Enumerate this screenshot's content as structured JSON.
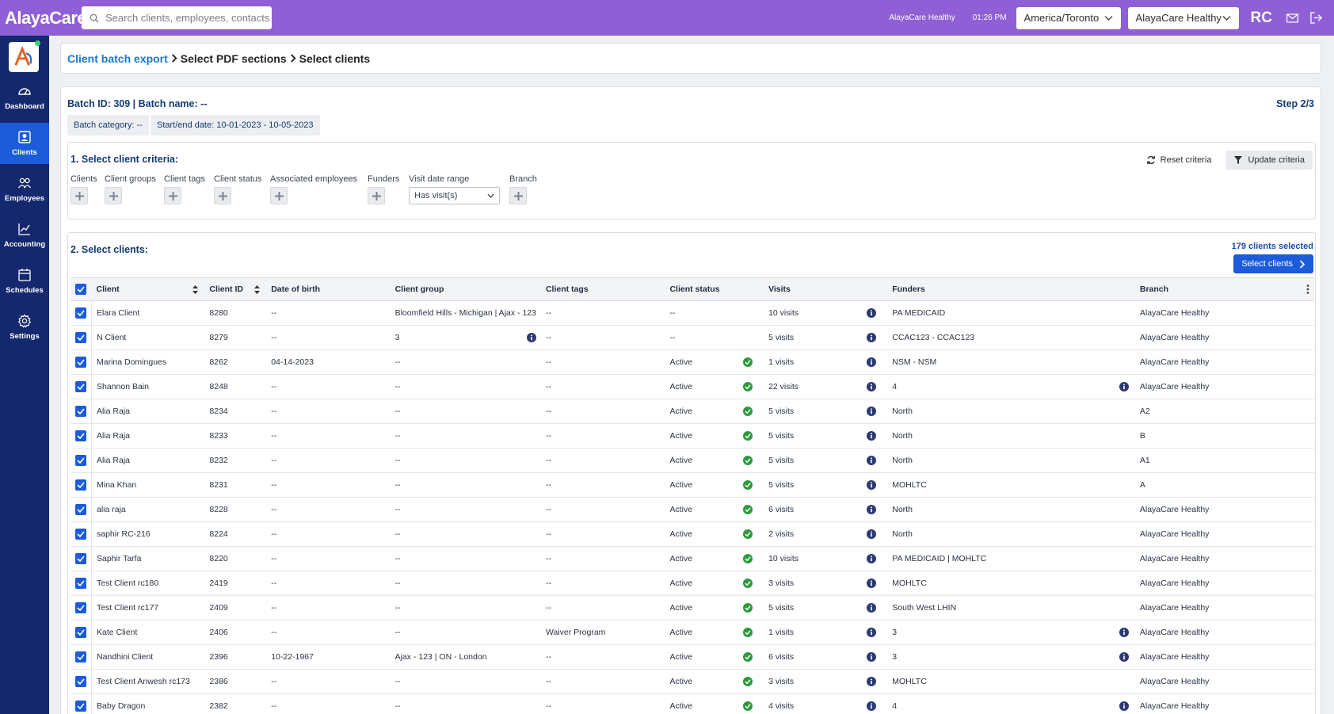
{
  "app": {
    "logo_text": "AlayaCare"
  },
  "topbar": {
    "search_placeholder": "Search clients, employees, contacts",
    "org_label": "AlayaCare Healthy",
    "time": "01:26 PM",
    "timezone": "America/Toronto",
    "org_select": "AlayaCare Healthy",
    "user_initials": "RC"
  },
  "sidebar": {
    "items": [
      {
        "label": "Dashboard",
        "icon": "dashboard-icon"
      },
      {
        "label": "Clients",
        "icon": "client-icon",
        "active": true
      },
      {
        "label": "Employees",
        "icon": "employees-icon"
      },
      {
        "label": "Accounting",
        "icon": "accounting-icon"
      },
      {
        "label": "Schedules",
        "icon": "calendar-icon"
      },
      {
        "label": "Settings",
        "icon": "gear-icon"
      }
    ]
  },
  "breadcrumb": {
    "link": "Client batch export",
    "item2": "Select PDF sections",
    "item3": "Select clients"
  },
  "batch": {
    "line": "Batch ID: 309 | Batch name: --",
    "step": "Step 2/3",
    "category": "Batch category: --",
    "dates": "Start/end date: 10-01-2023 - 10-05-2023"
  },
  "criteria": {
    "title": "1. Select client criteria:",
    "reset_label": "Reset criteria",
    "update_label": "Update criteria",
    "filters": {
      "clients": "Clients",
      "groups": "Client groups",
      "tags": "Client tags",
      "status": "Client status",
      "employees": "Associated employees",
      "funders": "Funders",
      "visit_range": "Visit date range",
      "visit_range_value": "Has visit(s)",
      "branch": "Branch"
    }
  },
  "clients": {
    "title": "2. Select clients:",
    "selected_count": "179 clients selected",
    "select_button": "Select clients",
    "columns": {
      "client": "Client",
      "client_id": "Client ID",
      "dob": "Date of birth",
      "group": "Client group",
      "tags": "Client tags",
      "status": "Client status",
      "visits": "Visits",
      "funders": "Funders",
      "branch": "Branch"
    },
    "rows": [
      {
        "name": "Elara Client",
        "id": "8280",
        "dob": "--",
        "group": "Bloomfield Hills - Michigan | Ajax - 123",
        "group_info": false,
        "tags": "--",
        "status": "--",
        "status_ok": false,
        "visits": "10 visits",
        "funders": "PA MEDICAID",
        "funders_info": false,
        "branch": "AlayaCare Healthy"
      },
      {
        "name": "N Client",
        "id": "8279",
        "dob": "--",
        "group": "3",
        "group_info": true,
        "tags": "--",
        "status": "--",
        "status_ok": false,
        "visits": "5 visits",
        "funders": "CCAC123 - CCAC123",
        "funders_info": false,
        "branch": "AlayaCare Healthy"
      },
      {
        "name": "Marina Domingues",
        "id": "8262",
        "dob": "04-14-2023",
        "group": "--",
        "group_info": false,
        "tags": "--",
        "status": "Active",
        "status_ok": true,
        "visits": "1 visits",
        "funders": "NSM - NSM",
        "funders_info": false,
        "branch": "AlayaCare Healthy"
      },
      {
        "name": "Shannon Bain",
        "id": "8248",
        "dob": "--",
        "group": "--",
        "group_info": false,
        "tags": "--",
        "status": "Active",
        "status_ok": true,
        "visits": "22 visits",
        "funders": "4",
        "funders_info": true,
        "branch": "AlayaCare Healthy"
      },
      {
        "name": "Alia Raja",
        "id": "8234",
        "dob": "--",
        "group": "--",
        "group_info": false,
        "tags": "--",
        "status": "Active",
        "status_ok": true,
        "visits": "5 visits",
        "funders": "North",
        "funders_info": false,
        "branch": "A2"
      },
      {
        "name": "Alia Raja",
        "id": "8233",
        "dob": "--",
        "group": "--",
        "group_info": false,
        "tags": "--",
        "status": "Active",
        "status_ok": true,
        "visits": "5 visits",
        "funders": "North",
        "funders_info": false,
        "branch": "B"
      },
      {
        "name": "Alia Raja",
        "id": "8232",
        "dob": "--",
        "group": "--",
        "group_info": false,
        "tags": "--",
        "status": "Active",
        "status_ok": true,
        "visits": "5 visits",
        "funders": "North",
        "funders_info": false,
        "branch": "A1"
      },
      {
        "name": "Mina Khan",
        "id": "8231",
        "dob": "--",
        "group": "--",
        "group_info": false,
        "tags": "--",
        "status": "Active",
        "status_ok": true,
        "visits": "5 visits",
        "funders": "MOHLTC",
        "funders_info": false,
        "branch": "A"
      },
      {
        "name": "alia raja",
        "id": "8228",
        "dob": "--",
        "group": "--",
        "group_info": false,
        "tags": "--",
        "status": "Active",
        "status_ok": true,
        "visits": "6 visits",
        "funders": "North",
        "funders_info": false,
        "branch": "AlayaCare Healthy"
      },
      {
        "name": "saphir RC-216",
        "id": "8224",
        "dob": "--",
        "group": "--",
        "group_info": false,
        "tags": "--",
        "status": "Active",
        "status_ok": true,
        "visits": "2 visits",
        "funders": "North",
        "funders_info": false,
        "branch": "AlayaCare Healthy"
      },
      {
        "name": "Saphir Tarfa",
        "id": "8220",
        "dob": "--",
        "group": "--",
        "group_info": false,
        "tags": "--",
        "status": "Active",
        "status_ok": true,
        "visits": "10 visits",
        "funders": "PA MEDICAID | MOHLTC",
        "funders_info": false,
        "branch": "AlayaCare Healthy"
      },
      {
        "name": "Test Client rc180",
        "id": "2419",
        "dob": "--",
        "group": "--",
        "group_info": false,
        "tags": "--",
        "status": "Active",
        "status_ok": true,
        "visits": "3 visits",
        "funders": "MOHLTC",
        "funders_info": false,
        "branch": "AlayaCare Healthy"
      },
      {
        "name": "Test Client rc177",
        "id": "2409",
        "dob": "--",
        "group": "--",
        "group_info": false,
        "tags": "--",
        "status": "Active",
        "status_ok": true,
        "visits": "5 visits",
        "funders": "South West LHIN",
        "funders_info": false,
        "branch": "AlayaCare Healthy"
      },
      {
        "name": "Kate Client",
        "id": "2406",
        "dob": "--",
        "group": "--",
        "group_info": false,
        "tags": "Waiver Program",
        "status": "Active",
        "status_ok": true,
        "visits": "1 visits",
        "funders": "3",
        "funders_info": true,
        "branch": "AlayaCare Healthy"
      },
      {
        "name": "Nandhini Client",
        "id": "2396",
        "dob": "10-22-1967",
        "group": "Ajax - 123 | ON - London",
        "group_info": false,
        "tags": "--",
        "status": "Active",
        "status_ok": true,
        "visits": "6 visits",
        "funders": "3",
        "funders_info": true,
        "branch": "AlayaCare Healthy"
      },
      {
        "name": "Test Client Anwesh rc173",
        "id": "2386",
        "dob": "--",
        "group": "--",
        "group_info": false,
        "tags": "--",
        "status": "Active",
        "status_ok": true,
        "visits": "3 visits",
        "funders": "MOHLTC",
        "funders_info": false,
        "branch": "AlayaCare Healthy"
      },
      {
        "name": "Baby Dragon",
        "id": "2382",
        "dob": "--",
        "group": "--",
        "group_info": false,
        "tags": "--",
        "status": "Active",
        "status_ok": true,
        "visits": "4 visits",
        "funders": "4",
        "funders_info": true,
        "branch": "AlayaCare Healthy"
      }
    ]
  },
  "colors": {
    "topbar": "#8f5fd6",
    "sidebar": "#13286d",
    "accent": "#1c5bd9",
    "status_ok": "#2e9a3e",
    "info": "#2b3a73"
  }
}
